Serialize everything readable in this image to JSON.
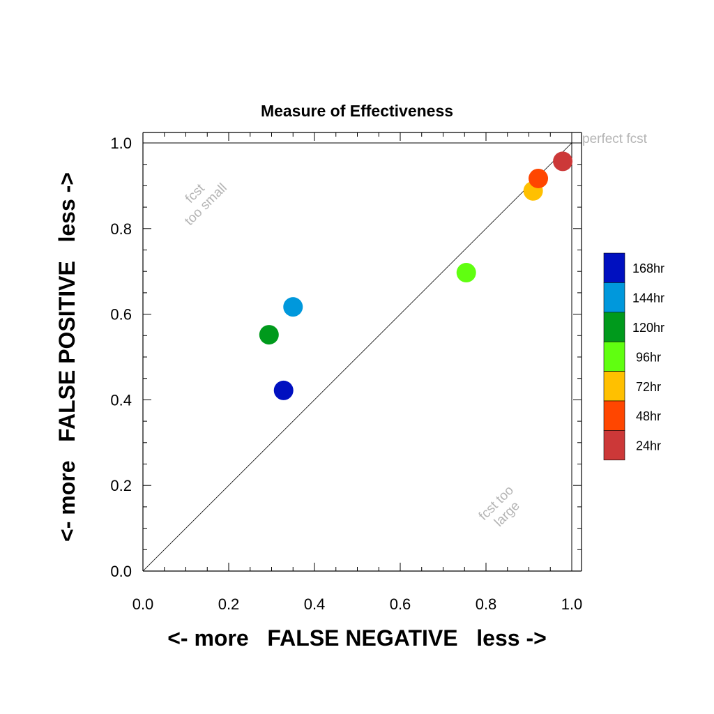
{
  "chart_data": {
    "type": "scatter",
    "title": "Measure of Effectiveness",
    "xlabel": "<- more   FALSE NEGATIVE   less ->",
    "ylabel": "<- more   FALSE POSITIVE   less ->",
    "xlim": [
      0.0,
      1.0
    ],
    "ylim": [
      0.0,
      1.0
    ],
    "x_ticks": [
      "0.0",
      "0.2",
      "0.4",
      "0.6",
      "0.8",
      "1.0"
    ],
    "y_ticks": [
      "0.0",
      "0.2",
      "0.4",
      "0.6",
      "0.8",
      "1.0"
    ],
    "grid": false,
    "diagonal_reference_line": true,
    "annotations": {
      "perfect": "perfect fcst",
      "too_small": [
        "fcst",
        "too small"
      ],
      "too_large": [
        "fcst too",
        "large"
      ]
    },
    "legend_position": "right",
    "series": [
      {
        "name": "168hr",
        "color": "#0010c0",
        "x": 0.328,
        "y": 0.422
      },
      {
        "name": "144hr",
        "color": "#0098dc",
        "x": 0.35,
        "y": 0.617
      },
      {
        "name": "120hr",
        "color": "#009a1c",
        "x": 0.294,
        "y": 0.552
      },
      {
        "name": "96hr",
        "color": "#60ff10",
        "x": 0.754,
        "y": 0.697
      },
      {
        "name": "72hr",
        "color": "#ffc000",
        "x": 0.91,
        "y": 0.888
      },
      {
        "name": "48hr",
        "color": "#ff4600",
        "x": 0.922,
        "y": 0.917
      },
      {
        "name": "24hr",
        "color": "#cc3838",
        "x": 0.979,
        "y": 0.957
      }
    ]
  }
}
